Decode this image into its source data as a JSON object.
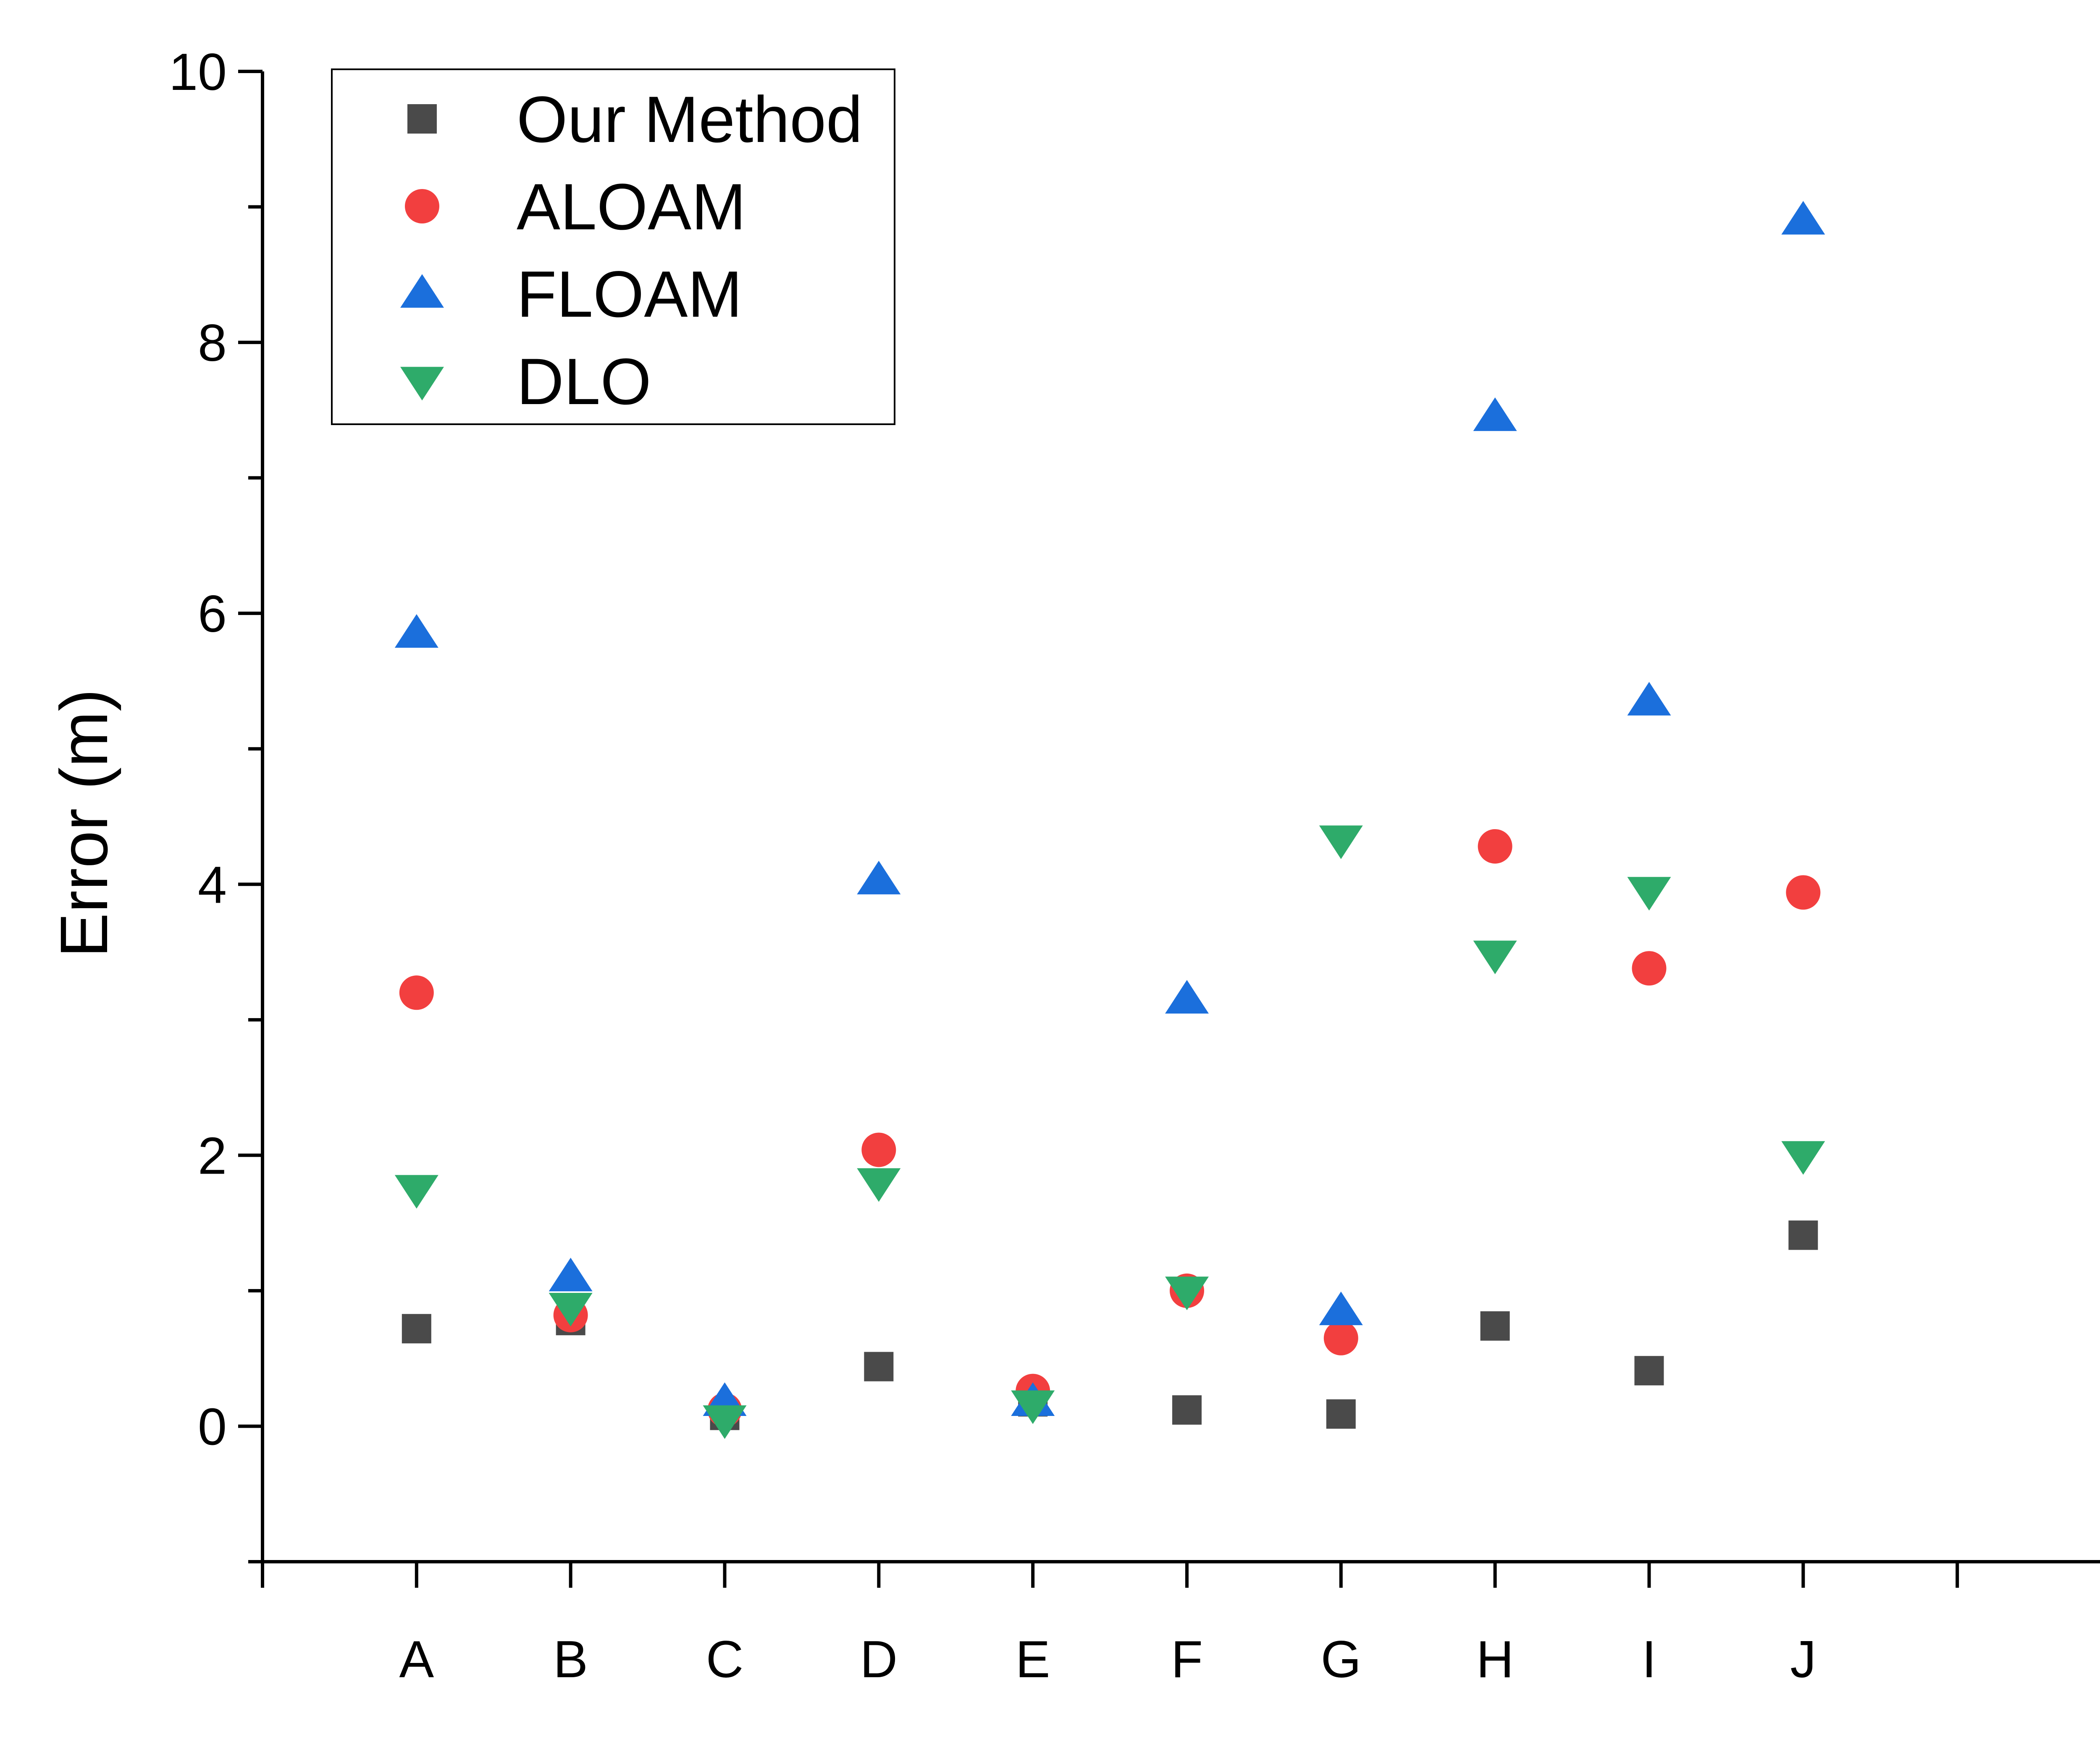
{
  "chart_data": {
    "type": "scatter",
    "title": "",
    "xlabel": "",
    "ylabel": "Error (m)",
    "ylim": [
      -1,
      10
    ],
    "yticks": [
      0,
      2,
      4,
      6,
      8,
      10
    ],
    "y_minor_step": 1,
    "categories": [
      "A",
      "B",
      "C",
      "D",
      "E",
      "F",
      "G",
      "H",
      "I",
      "J"
    ],
    "x_slots": 12,
    "grid": false,
    "legend_position": "top-left",
    "series": [
      {
        "name": "Our Method",
        "marker": "square",
        "color": "#4a4a4a",
        "values": [
          0.72,
          0.78,
          0.08,
          0.44,
          0.18,
          0.12,
          0.09,
          0.74,
          0.41,
          1.41
        ]
      },
      {
        "name": "ALOAM",
        "marker": "circle",
        "color": "#f23f3f",
        "values": [
          3.2,
          0.82,
          0.12,
          2.04,
          0.26,
          1.0,
          0.65,
          4.28,
          3.38,
          3.94
        ]
      },
      {
        "name": "FLOAM",
        "marker": "triangle-up",
        "color": "#1b6fdc",
        "values": [
          5.85,
          1.1,
          0.18,
          4.03,
          0.18,
          3.15,
          0.85,
          7.45,
          5.35,
          8.9
        ]
      },
      {
        "name": "DLO",
        "marker": "triangle-down",
        "color": "#2eab6a",
        "values": [
          1.75,
          0.88,
          0.05,
          1.8,
          0.16,
          1.0,
          4.33,
          3.48,
          3.95,
          2.0
        ]
      }
    ]
  }
}
